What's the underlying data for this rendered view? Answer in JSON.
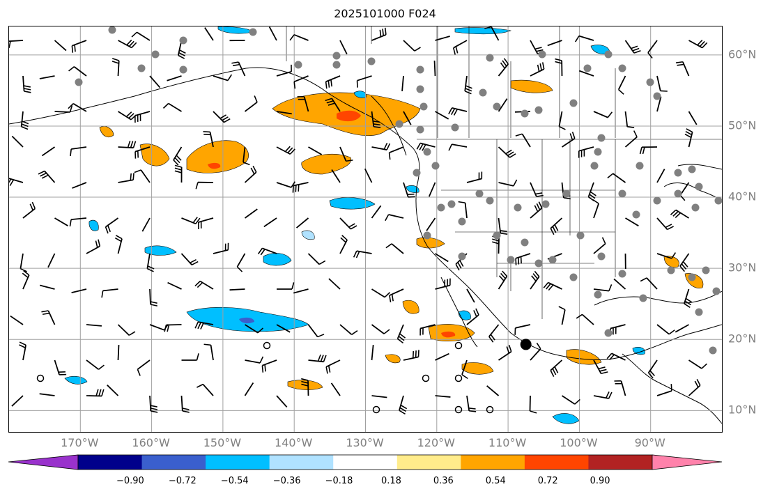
{
  "title": "2025101000 F024",
  "map": {
    "projection": "PlateCarree",
    "lon_range": [
      -180,
      -80
    ],
    "lat_range": [
      7,
      64
    ],
    "lon_ticks": [
      -170,
      -160,
      -150,
      -140,
      -130,
      -120,
      -110,
      -100,
      -90
    ],
    "lat_ticks": [
      10,
      20,
      30,
      40,
      50,
      60
    ],
    "lon_labels": [
      "170°W",
      "160°W",
      "150°W",
      "140°W",
      "130°W",
      "120°W",
      "110°W",
      "100°W",
      "90°W"
    ],
    "lat_labels": [
      "10°N",
      "20°N",
      "30°N",
      "40°N",
      "50°N",
      "60°N"
    ],
    "gridlines": true,
    "features": [
      "coastlines",
      "country borders",
      "US state borders",
      "Canadian provinces"
    ]
  },
  "colorbar": {
    "extend": "both",
    "orientation": "horizontal",
    "colors": [
      "#9932cc",
      "#00008b",
      "#3a5fcd",
      "#00bfff",
      "#b0e2ff",
      "#ffffff",
      "#ffec8b",
      "#ffa500",
      "#ff4500",
      "#b22222",
      "#ff82ab"
    ],
    "ticks": [
      "−0.90",
      "−0.72",
      "−0.54",
      "−0.36",
      "−0.18",
      "0.18",
      "0.36",
      "0.54",
      "0.72",
      "0.90"
    ],
    "levels": [
      -0.9,
      -0.72,
      -0.54,
      -0.36,
      -0.18,
      0.18,
      0.36,
      0.54,
      0.72,
      0.9
    ]
  },
  "markers": {
    "gray_station_color": "#808080",
    "large_black_marker": {
      "lon": -107.5,
      "lat": 19.3
    }
  }
}
